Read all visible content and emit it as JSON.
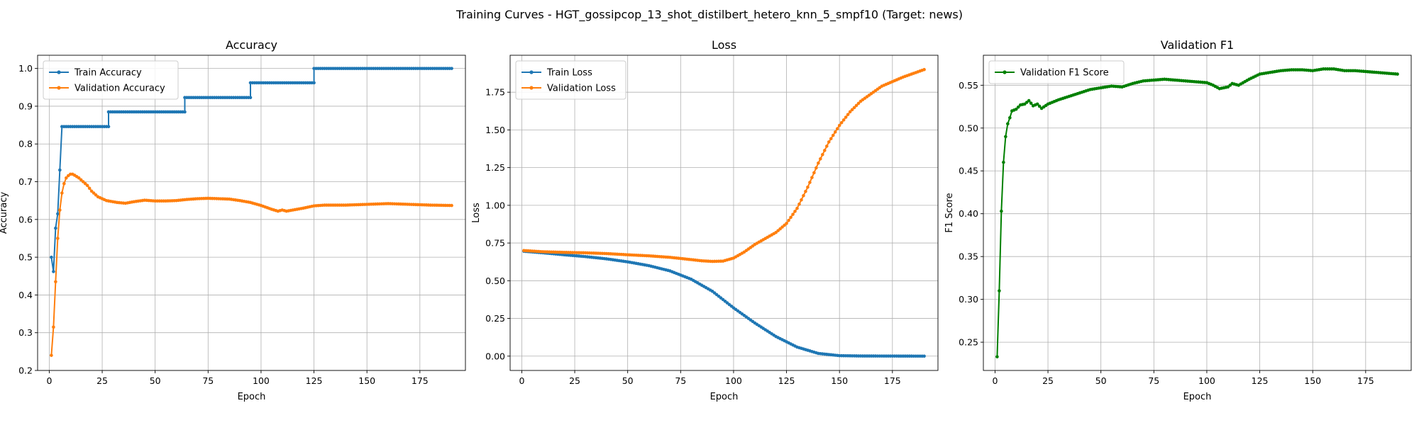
{
  "figure": {
    "title": "Training Curves - HGT_gossipcop_13_shot_distilbert_hetero_knn_5_smpf10 (Target: news)"
  },
  "chart_data": [
    {
      "type": "line",
      "title": "Accuracy",
      "xlabel": "Epoch",
      "ylabel": "Accuracy",
      "xlim": [
        -5.5,
        196.5
      ],
      "ylim": [
        0.2,
        1.035
      ],
      "xticks": [
        0,
        25,
        50,
        75,
        100,
        125,
        150,
        175
      ],
      "yticks": [
        0.2,
        0.3,
        0.4,
        0.5,
        0.6,
        0.7,
        0.8,
        0.9,
        1.0
      ],
      "ytick_decimals": 1,
      "grid": true,
      "legend": "upper left",
      "series": [
        {
          "name": "Train Accuracy",
          "color": "#1f77b4",
          "markers": true,
          "points": [
            [
              1,
              0.5
            ],
            [
              2,
              0.462
            ],
            [
              3,
              0.577
            ],
            [
              4,
              0.615
            ],
            [
              5,
              0.731
            ],
            [
              6,
              0.846
            ],
            [
              28,
              0.846
            ],
            [
              28,
              0.885
            ],
            [
              64,
              0.885
            ],
            [
              64,
              0.923
            ],
            [
              95,
              0.923
            ],
            [
              95,
              0.962
            ],
            [
              125,
              0.962
            ],
            [
              125,
              1.0
            ],
            [
              190,
              1.0
            ]
          ]
        },
        {
          "name": "Validation Accuracy",
          "color": "#ff7f0e",
          "markers": true,
          "points": [
            [
              1,
              0.24
            ],
            [
              2,
              0.315
            ],
            [
              3,
              0.435
            ],
            [
              4,
              0.55
            ],
            [
              5,
              0.625
            ],
            [
              6,
              0.67
            ],
            [
              7,
              0.695
            ],
            [
              8,
              0.71
            ],
            [
              9,
              0.716
            ],
            [
              10,
              0.72
            ],
            [
              11,
              0.72
            ],
            [
              12,
              0.717
            ],
            [
              14,
              0.71
            ],
            [
              16,
              0.7
            ],
            [
              18,
              0.69
            ],
            [
              20,
              0.675
            ],
            [
              23,
              0.66
            ],
            [
              27,
              0.65
            ],
            [
              32,
              0.645
            ],
            [
              36,
              0.643
            ],
            [
              40,
              0.647
            ],
            [
              45,
              0.651
            ],
            [
              50,
              0.649
            ],
            [
              55,
              0.649
            ],
            [
              60,
              0.65
            ],
            [
              65,
              0.653
            ],
            [
              70,
              0.655
            ],
            [
              75,
              0.656
            ],
            [
              80,
              0.655
            ],
            [
              85,
              0.654
            ],
            [
              90,
              0.65
            ],
            [
              95,
              0.645
            ],
            [
              100,
              0.637
            ],
            [
              105,
              0.627
            ],
            [
              108,
              0.622
            ],
            [
              110,
              0.625
            ],
            [
              112,
              0.622
            ],
            [
              115,
              0.625
            ],
            [
              120,
              0.63
            ],
            [
              125,
              0.636
            ],
            [
              130,
              0.638
            ],
            [
              140,
              0.638
            ],
            [
              150,
              0.64
            ],
            [
              160,
              0.642
            ],
            [
              170,
              0.64
            ],
            [
              180,
              0.638
            ],
            [
              190,
              0.637
            ]
          ]
        }
      ]
    },
    {
      "type": "line",
      "title": "Loss",
      "xlabel": "Epoch",
      "ylabel": "Loss",
      "xlim": [
        -5.5,
        196.5
      ],
      "ylim": [
        -0.095,
        1.995
      ],
      "xticks": [
        0,
        25,
        50,
        75,
        100,
        125,
        150,
        175
      ],
      "yticks": [
        0.0,
        0.25,
        0.5,
        0.75,
        1.0,
        1.25,
        1.5,
        1.75
      ],
      "ytick_decimals": 2,
      "grid": true,
      "legend": "upper left",
      "series": [
        {
          "name": "Train Loss",
          "color": "#1f77b4",
          "markers": true,
          "points": [
            [
              1,
              0.695
            ],
            [
              10,
              0.685
            ],
            [
              20,
              0.672
            ],
            [
              30,
              0.66
            ],
            [
              40,
              0.645
            ],
            [
              50,
              0.625
            ],
            [
              60,
              0.6
            ],
            [
              70,
              0.565
            ],
            [
              80,
              0.51
            ],
            [
              90,
              0.43
            ],
            [
              100,
              0.32
            ],
            [
              110,
              0.22
            ],
            [
              120,
              0.13
            ],
            [
              130,
              0.06
            ],
            [
              140,
              0.018
            ],
            [
              150,
              0.003
            ],
            [
              160,
              0.001
            ],
            [
              190,
              0.0
            ]
          ]
        },
        {
          "name": "Validation Loss",
          "color": "#ff7f0e",
          "markers": true,
          "points": [
            [
              1,
              0.7
            ],
            [
              10,
              0.692
            ],
            [
              20,
              0.688
            ],
            [
              30,
              0.685
            ],
            [
              40,
              0.68
            ],
            [
              50,
              0.672
            ],
            [
              60,
              0.665
            ],
            [
              70,
              0.655
            ],
            [
              80,
              0.64
            ],
            [
              85,
              0.632
            ],
            [
              90,
              0.628
            ],
            [
              95,
              0.63
            ],
            [
              100,
              0.65
            ],
            [
              105,
              0.69
            ],
            [
              110,
              0.74
            ],
            [
              115,
              0.78
            ],
            [
              120,
              0.82
            ],
            [
              125,
              0.88
            ],
            [
              130,
              0.98
            ],
            [
              135,
              1.12
            ],
            [
              140,
              1.28
            ],
            [
              145,
              1.42
            ],
            [
              150,
              1.53
            ],
            [
              155,
              1.62
            ],
            [
              160,
              1.69
            ],
            [
              165,
              1.74
            ],
            [
              170,
              1.79
            ],
            [
              175,
              1.82
            ],
            [
              180,
              1.85
            ],
            [
              185,
              1.875
            ],
            [
              190,
              1.9
            ]
          ]
        }
      ]
    },
    {
      "type": "line",
      "title": "Validation F1",
      "xlabel": "Epoch",
      "ylabel": "F1 Score",
      "xlim": [
        -5.5,
        196.5
      ],
      "ylim": [
        0.217,
        0.585
      ],
      "xticks": [
        0,
        25,
        50,
        75,
        100,
        125,
        150,
        175
      ],
      "yticks": [
        0.25,
        0.3,
        0.35,
        0.4,
        0.45,
        0.5,
        0.55
      ],
      "ytick_decimals": 2,
      "grid": true,
      "legend": "upper left",
      "series": [
        {
          "name": "Validation F1 Score",
          "color": "#008000",
          "markers": true,
          "points": [
            [
              1,
              0.233
            ],
            [
              2,
              0.31
            ],
            [
              3,
              0.403
            ],
            [
              4,
              0.46
            ],
            [
              5,
              0.49
            ],
            [
              6,
              0.505
            ],
            [
              7,
              0.512
            ],
            [
              8,
              0.52
            ],
            [
              10,
              0.522
            ],
            [
              12,
              0.527
            ],
            [
              14,
              0.528
            ],
            [
              16,
              0.532
            ],
            [
              18,
              0.526
            ],
            [
              20,
              0.528
            ],
            [
              22,
              0.523
            ],
            [
              25,
              0.528
            ],
            [
              30,
              0.533
            ],
            [
              35,
              0.537
            ],
            [
              40,
              0.541
            ],
            [
              45,
              0.545
            ],
            [
              50,
              0.547
            ],
            [
              55,
              0.549
            ],
            [
              60,
              0.548
            ],
            [
              65,
              0.552
            ],
            [
              70,
              0.555
            ],
            [
              75,
              0.556
            ],
            [
              80,
              0.557
            ],
            [
              85,
              0.556
            ],
            [
              90,
              0.555
            ],
            [
              95,
              0.554
            ],
            [
              100,
              0.553
            ],
            [
              103,
              0.55
            ],
            [
              106,
              0.546
            ],
            [
              110,
              0.548
            ],
            [
              112,
              0.552
            ],
            [
              115,
              0.55
            ],
            [
              120,
              0.557
            ],
            [
              125,
              0.563
            ],
            [
              130,
              0.565
            ],
            [
              135,
              0.567
            ],
            [
              140,
              0.568
            ],
            [
              145,
              0.568
            ],
            [
              150,
              0.567
            ],
            [
              155,
              0.569
            ],
            [
              160,
              0.569
            ],
            [
              165,
              0.567
            ],
            [
              170,
              0.567
            ],
            [
              175,
              0.566
            ],
            [
              180,
              0.565
            ],
            [
              185,
              0.564
            ],
            [
              190,
              0.563
            ]
          ]
        }
      ]
    }
  ]
}
